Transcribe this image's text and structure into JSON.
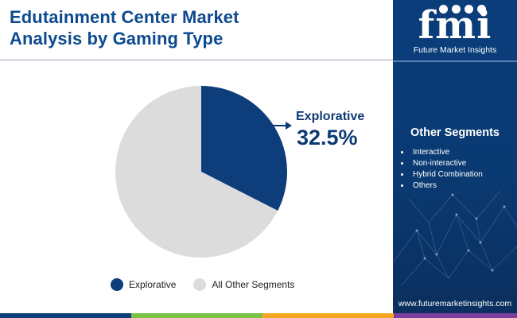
{
  "title": {
    "line1": "Edutainment Center Market",
    "line2": "Analysis by Gaming Type"
  },
  "chart_data": {
    "type": "pie",
    "categories": [
      "Explorative",
      "All Other Segments"
    ],
    "values": [
      32.5,
      67.5
    ],
    "colors": [
      "#0d3d7a",
      "#dcdcdc"
    ],
    "callout": {
      "label": "Explorative",
      "value_text": "32.5%"
    },
    "legend": {
      "placement": "bottom",
      "entries": [
        "Explorative",
        "All Other Segments"
      ]
    }
  },
  "side_panel": {
    "logo_text": "fmi",
    "logo_caption": "Future Market Insights",
    "heading": "Other Segments",
    "segments": [
      "Interactive",
      "Non-interactive",
      "Hybrid Combination",
      "Others"
    ],
    "website": "www.futuremarketinsights.com",
    "background_color": "#0a3d7a"
  },
  "footer_colors": [
    "#0d3d7a",
    "#7cc242",
    "#f5a623",
    "#7b3fa0",
    "#0d3d7a"
  ]
}
